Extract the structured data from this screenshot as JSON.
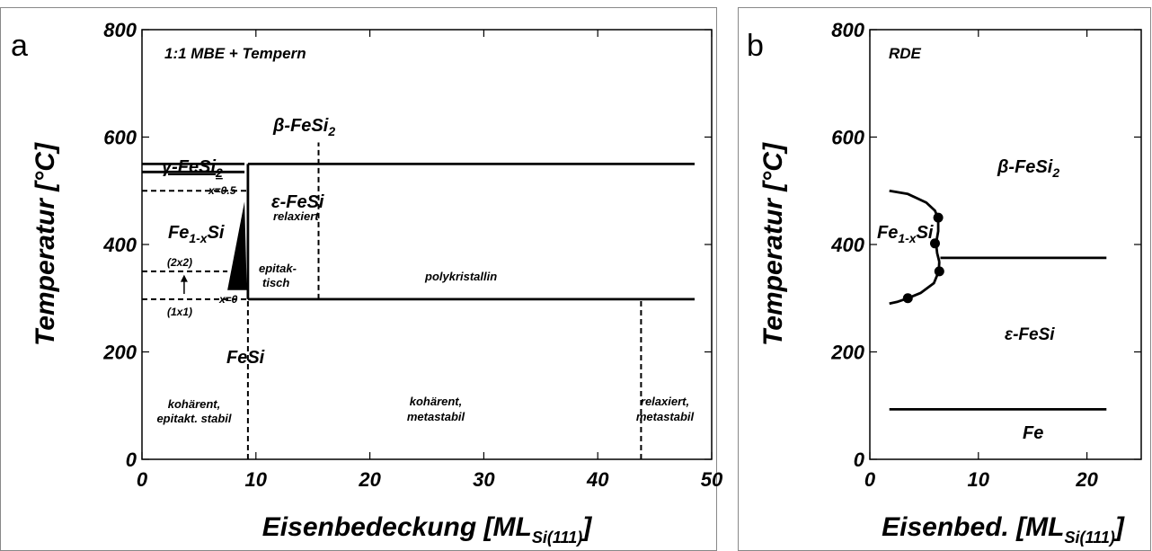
{
  "chart_data": [
    {
      "type": "phase-diagram",
      "panel_label": "a",
      "title": "1:1 MBE + Tempern",
      "xlabel": {
        "main": "Eisenbedeckung [ML",
        "sub": "Si(111)",
        "close": "]"
      },
      "ylabel": "Temperatur [°C]",
      "xlim": [
        0,
        50
      ],
      "ylim": [
        0,
        800
      ],
      "xticks": [
        "0",
        "10",
        "20",
        "30",
        "40",
        "50"
      ],
      "yticks": [
        "0",
        "200",
        "400",
        "600",
        "800"
      ],
      "lines": [
        {
          "id": "gamma-upper",
          "style": "solid",
          "points": [
            [
              0,
              550
            ],
            [
              9,
              550
            ]
          ]
        },
        {
          "id": "gamma-lower",
          "style": "solid",
          "points": [
            [
              0,
              535
            ],
            [
              9,
              535
            ]
          ]
        },
        {
          "id": "fe-upper",
          "style": "dashed",
          "points": [
            [
              0,
              500
            ],
            [
              9.3,
              500
            ]
          ]
        },
        {
          "id": "reconstruction",
          "style": "dashed",
          "points": [
            [
              0,
              350
            ],
            [
              7.5,
              350
            ]
          ]
        },
        {
          "id": "lower-dashed",
          "style": "dashed",
          "points": [
            [
              0,
              298
            ],
            [
              9.3,
              298
            ]
          ]
        },
        {
          "id": "fesi-vertical",
          "style": "solid",
          "points": [
            [
              9.3,
              298
            ],
            [
              9.3,
              550
            ]
          ]
        },
        {
          "id": "fesi-lower-dashed",
          "style": "dashed",
          "points": [
            [
              9.3,
              0
            ],
            [
              9.3,
              298
            ]
          ]
        },
        {
          "id": "beta-boundary",
          "style": "solid",
          "points": [
            [
              9.3,
              550
            ],
            [
              48.5,
              550
            ]
          ]
        },
        {
          "id": "poly-boundary",
          "style": "solid",
          "points": [
            [
              9.3,
              298
            ],
            [
              48.5,
              298
            ]
          ]
        },
        {
          "id": "relax-vertical",
          "style": "dashed",
          "points": [
            [
              15.5,
              298
            ],
            [
              15.5,
              590
            ]
          ]
        },
        {
          "id": "meta-vertical",
          "style": "dashed",
          "points": [
            [
              43.8,
              0
            ],
            [
              43.8,
              298
            ]
          ]
        }
      ],
      "wedge": [
        [
          7.5,
          315
        ],
        [
          9.2,
          315
        ],
        [
          9.0,
          480
        ]
      ],
      "arrow": {
        "x": 3.7,
        "from": 308,
        "to": 342
      },
      "labels": {
        "gamma_phase": "γ-FeSi",
        "gamma_sub": "2",
        "beta_phase": "β-FeSi",
        "beta_sub": "2",
        "x_half": "x=0.5",
        "x_zero": "x=0",
        "fe_main": "Fe",
        "fe_sub": "1-x",
        "fe_si": "Si",
        "recon_2x2": "(2x2)",
        "recon_1x1": "(1x1)",
        "eps_fesi": "ε-FeSi",
        "relaxiert": "relaxiert",
        "epitak1": "epitak-",
        "epitak2": "tisch",
        "polykristallin": "polykristallin",
        "fesi": "FeSi",
        "koh1_a": "kohärent,",
        "koh1_b": "epitakt. stabil",
        "koh2_a": "kohärent,",
        "koh2_b": "metastabil",
        "rel_a": "relaxiert,",
        "rel_b": "metastabil"
      }
    },
    {
      "type": "phase-diagram",
      "panel_label": "b",
      "title": "RDE",
      "xlabel": {
        "main": "Eisenbed. [ML",
        "sub": "Si(111)",
        "close": "]"
      },
      "ylabel": "Temperatur [°C]",
      "xlim": [
        0,
        25
      ],
      "ylim": [
        0,
        800
      ],
      "xticks": [
        "0",
        "10",
        "20"
      ],
      "yticks": [
        "0",
        "200",
        "400",
        "600",
        "800"
      ],
      "lines": [
        {
          "id": "fe-boundary",
          "style": "solid",
          "points": [
            [
              1.8,
              93
            ],
            [
              21.8,
              93
            ]
          ]
        },
        {
          "id": "beta-eps-boundary",
          "style": "solid",
          "points": [
            [
              6.5,
              375
            ],
            [
              21.8,
              375
            ]
          ]
        },
        {
          "id": "upper-curve",
          "style": "solid",
          "points": [
            [
              1.8,
              500
            ],
            [
              3.5,
              494
            ],
            [
              5.2,
              478
            ],
            [
              6.0,
              463
            ],
            [
              6.3,
              448
            ]
          ]
        },
        {
          "id": "mid-curve",
          "style": "solid",
          "points": [
            [
              6.3,
              448
            ],
            [
              6.3,
              425
            ],
            [
              6.1,
              402
            ],
            [
              6.2,
              384
            ],
            [
              6.4,
              368
            ]
          ]
        },
        {
          "id": "lower-curve",
          "style": "solid",
          "points": [
            [
              6.4,
              368
            ],
            [
              6.35,
              350
            ],
            [
              5.9,
              328
            ],
            [
              4.7,
              310
            ],
            [
              3.5,
              300
            ],
            [
              2.5,
              293
            ],
            [
              1.8,
              290
            ]
          ]
        }
      ],
      "points": [
        [
          6.3,
          450
        ],
        [
          6.0,
          402
        ],
        [
          6.4,
          350
        ],
        [
          3.5,
          300
        ]
      ],
      "labels": {
        "beta_phase": "β-FeSi",
        "beta_sub": "2",
        "eps_fesi": "ε-FeSi",
        "fe": "Fe",
        "fe_main": "Fe",
        "fe_sub": "1-x",
        "fe_si": "Si"
      }
    }
  ]
}
